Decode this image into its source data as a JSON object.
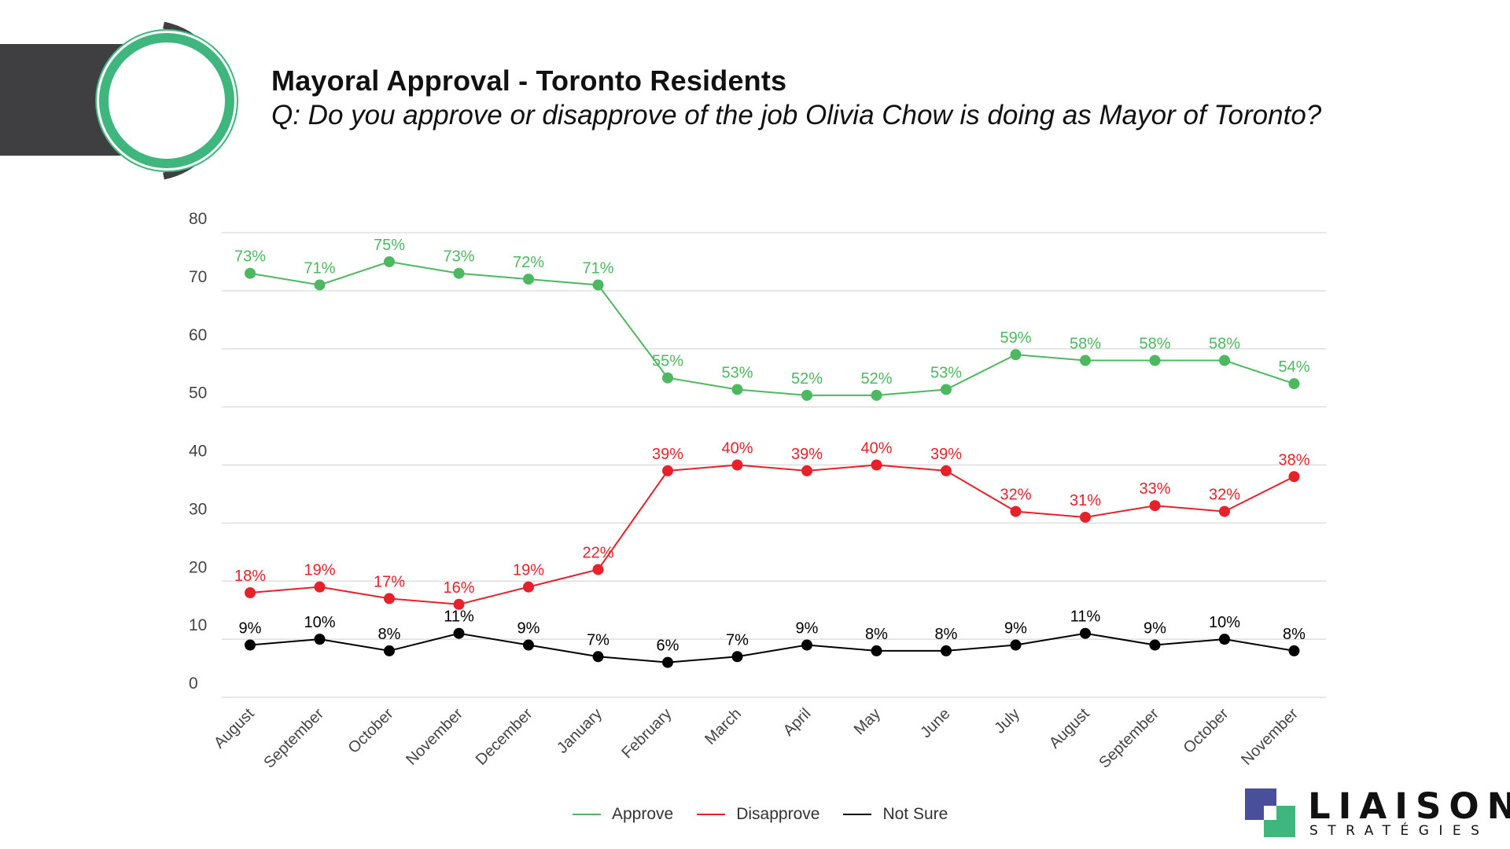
{
  "header": {
    "title": "Mayoral Approval - Toronto Residents",
    "subtitle": "Q: Do you approve or disapprove of the job Olivia Chow is doing as Mayor of Toronto?"
  },
  "brand": {
    "name": "LIAISON",
    "tagline": "STRATÉGIES"
  },
  "colors": {
    "approve": "#4cb85f",
    "disapprove": "#e8202a",
    "not_sure": "#000000",
    "grid": "#d9d9d9",
    "ring_green": "#3fb67e",
    "ring_dark": "#3f3f41"
  },
  "chart_data": {
    "type": "line",
    "title": "Mayoral Approval - Toronto Residents",
    "categories": [
      "August",
      "September",
      "October",
      "November",
      "December",
      "January",
      "February",
      "March",
      "April",
      "May",
      "June",
      "July",
      "August",
      "September",
      "October",
      "November"
    ],
    "y_ticks": [
      "0",
      "10",
      "20",
      "30",
      "40",
      "50",
      "60",
      "70",
      "80"
    ],
    "ylim": [
      0,
      80
    ],
    "grid": true,
    "legend_position": "bottom",
    "series": [
      {
        "name": "Approve",
        "key": "approve",
        "values": [
          73,
          71,
          75,
          73,
          72,
          71,
          55,
          53,
          52,
          52,
          53,
          59,
          58,
          58,
          58,
          54
        ],
        "labels": [
          "73%",
          "71%",
          "75%",
          "73%",
          "72%",
          "71%",
          "55%",
          "53%",
          "52%",
          "52%",
          "53%",
          "59%",
          "58%",
          "58%",
          "58%",
          "54%"
        ]
      },
      {
        "name": "Disapprove",
        "key": "disapprove",
        "values": [
          18,
          19,
          17,
          16,
          19,
          22,
          39,
          40,
          39,
          40,
          39,
          32,
          31,
          33,
          32,
          38
        ],
        "labels": [
          "18%",
          "19%",
          "17%",
          "16%",
          "19%",
          "22%",
          "39%",
          "40%",
          "39%",
          "40%",
          "39%",
          "32%",
          "31%",
          "33%",
          "32%",
          "38%"
        ]
      },
      {
        "name": "Not Sure",
        "key": "not_sure",
        "values": [
          9,
          10,
          8,
          11,
          9,
          7,
          6,
          7,
          9,
          8,
          8,
          9,
          11,
          9,
          10,
          8
        ],
        "labels": [
          "9%",
          "10%",
          "8%",
          "11%",
          "9%",
          "7%",
          "6%",
          "7%",
          "9%",
          "8%",
          "8%",
          "9%",
          "11%",
          "9%",
          "10%",
          "8%"
        ]
      }
    ]
  },
  "legend": [
    {
      "label": "Approve",
      "key": "approve"
    },
    {
      "label": "Disapprove",
      "key": "disapprove"
    },
    {
      "label": "Not Sure",
      "key": "not_sure"
    }
  ]
}
